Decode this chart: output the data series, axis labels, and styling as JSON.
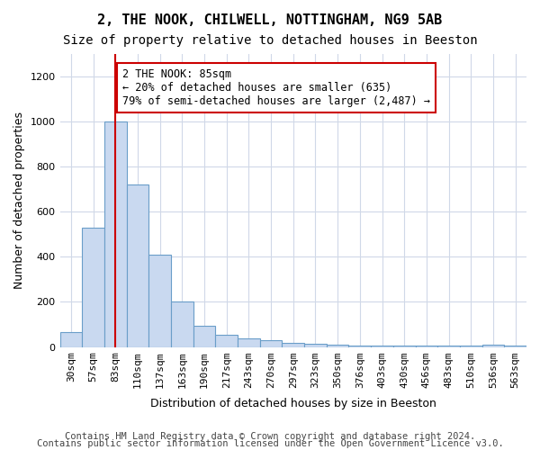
{
  "title1": "2, THE NOOK, CHILWELL, NOTTINGHAM, NG9 5AB",
  "title2": "Size of property relative to detached houses in Beeston",
  "xlabel": "Distribution of detached houses by size in Beeston",
  "ylabel": "Number of detached properties",
  "categories": [
    "30sqm",
    "57sqm",
    "83sqm",
    "110sqm",
    "137sqm",
    "163sqm",
    "190sqm",
    "217sqm",
    "243sqm",
    "270sqm",
    "297sqm",
    "323sqm",
    "350sqm",
    "376sqm",
    "403sqm",
    "430sqm",
    "456sqm",
    "483sqm",
    "510sqm",
    "536sqm",
    "563sqm"
  ],
  "values": [
    65,
    530,
    1000,
    720,
    410,
    200,
    95,
    55,
    40,
    30,
    20,
    15,
    10,
    5,
    5,
    5,
    5,
    5,
    5,
    10,
    5
  ],
  "bar_color": "#c9d9f0",
  "bar_edge_color": "#6a9ec9",
  "vline_x": 2,
  "vline_color": "#cc0000",
  "annotation_text": "2 THE NOOK: 85sqm\n← 20% of detached houses are smaller (635)\n79% of semi-detached houses are larger (2,487) →",
  "annotation_box_color": "#ffffff",
  "annotation_box_edge": "#cc0000",
  "ylim": [
    0,
    1300
  ],
  "yticks": [
    0,
    200,
    400,
    600,
    800,
    1000,
    1200
  ],
  "footer1": "Contains HM Land Registry data © Crown copyright and database right 2024.",
  "footer2": "Contains public sector information licensed under the Open Government Licence v3.0.",
  "title1_fontsize": 11,
  "title2_fontsize": 10,
  "axis_label_fontsize": 9,
  "tick_fontsize": 8,
  "footer_fontsize": 7.5,
  "annotation_fontsize": 8.5,
  "background_color": "#ffffff",
  "grid_color": "#d0d8e8"
}
